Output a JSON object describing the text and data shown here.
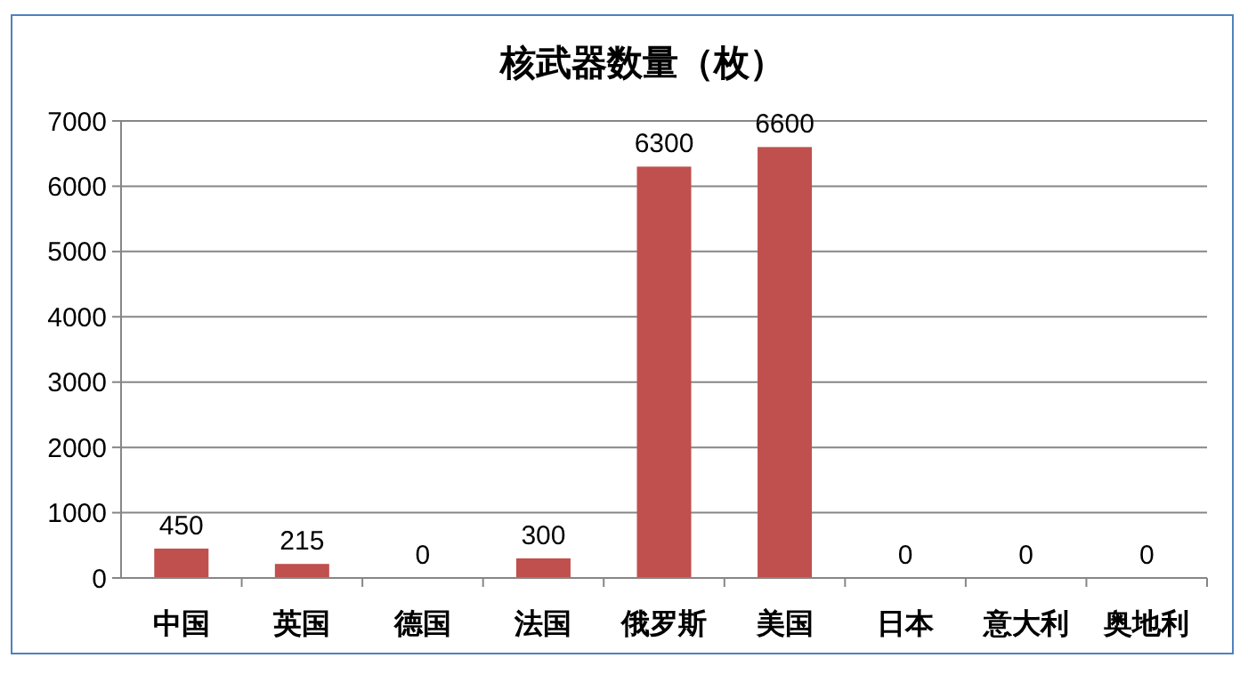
{
  "chart_data": {
    "type": "bar",
    "title": "核武器数量（枚）",
    "categories": [
      "中国",
      "英国",
      "德国",
      "法国",
      "俄罗斯",
      "美国",
      "日本",
      "意大利",
      "奥地利"
    ],
    "values": [
      450,
      215,
      0,
      300,
      6300,
      6600,
      0,
      0,
      0
    ],
    "color": "#c0504d",
    "ylim": [
      0,
      7000
    ],
    "yticks": [
      0,
      1000,
      2000,
      3000,
      4000,
      5000,
      6000,
      7000
    ],
    "grid": "y",
    "data_labels": true
  }
}
